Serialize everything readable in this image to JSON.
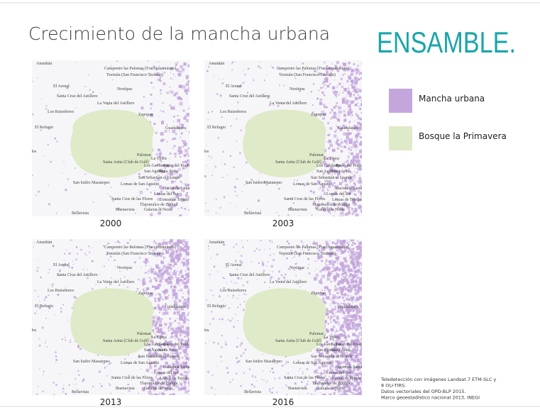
{
  "title": "Crecimiento de la mancha urbana",
  "logo": "ENSAMBLE.",
  "legend": [
    {
      "label": "Mancha urbana",
      "color": "#c4a6dc"
    },
    {
      "label": "Bosque la Primavera",
      "color": "#dfeac8"
    }
  ],
  "maps": [
    {
      "year": "2000"
    },
    {
      "year": "2003"
    },
    {
      "year": "2013"
    },
    {
      "year": "2016"
    }
  ],
  "map_labels": [
    "Amatitán",
    "Campestre las Palomas [Fraccionamiento]",
    "Tesistán (San Francisco Tesistán)",
    "El Arenal",
    "Nextipac",
    "Santa Cruz del Astillero",
    "La Venta del Astillero",
    "Los Ruiseñores",
    "Zapopan",
    "Guadalajara",
    "El Refugio",
    "Cuxillos",
    "Palomar",
    "Santa Anita [Club de Golf]",
    "La Tijera",
    "Los Gavilanes",
    "Paseo del Prado",
    "San Agustín",
    "Santa Anita",
    "San Sebastián el Grande",
    "San Isidro Mazatepec",
    "Lomas de San Agustín",
    "Hacienda Santa Fe",
    "Lomas del Sur",
    "Santa Cruz de las Flores",
    "Lomas de Tejeda",
    "Tlajomulco de Zúñiga",
    "Buenavista",
    "Galaxia la Noria",
    "Bellavista"
  ],
  "source": [
    "Teledetección con imágenes Landsat 7 ETM-SLC y",
    "8 OLI-TIRS.",
    "Datos vectoriales del OPD-BLP 2015.",
    "Marco geoestadístico nacional 2013, INEGI"
  ]
}
